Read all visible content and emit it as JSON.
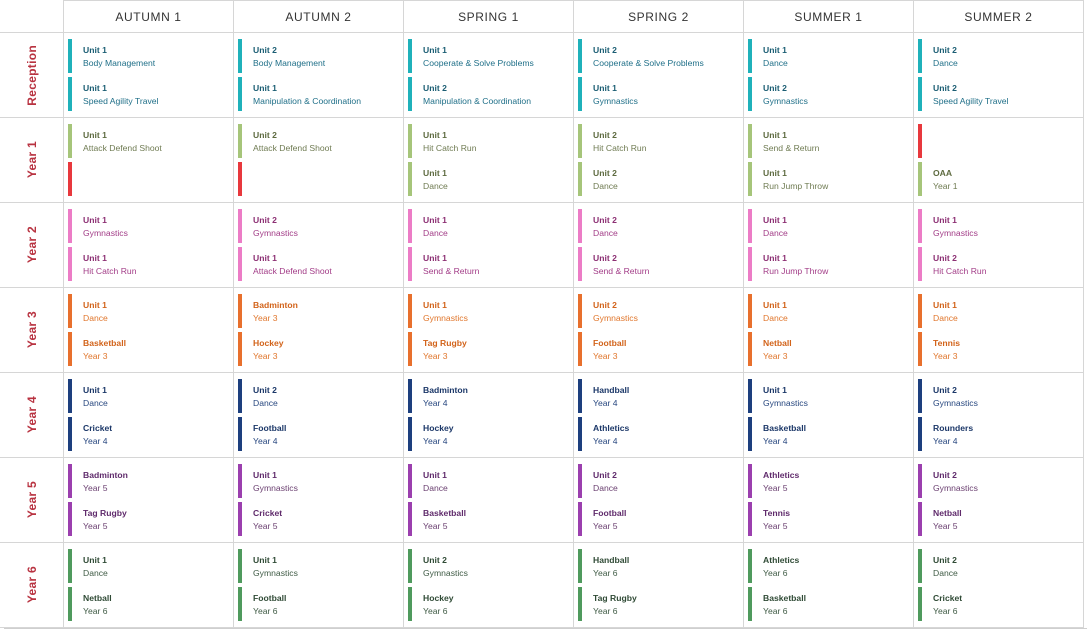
{
  "columns": [
    "AUTUMN 1",
    "AUTUMN 2",
    "SPRING 1",
    "SPRING 2",
    "SUMMER 1",
    "SUMMER 2"
  ],
  "rows": [
    {
      "label": "Reception",
      "bar_color": "#1fb1ba",
      "text_color": "#1f6f88",
      "title_color": "#1a5d73",
      "cells": [
        [
          {
            "title": "Unit 1",
            "sub": "Body Management"
          },
          {
            "title": "Unit 1",
            "sub": "Speed Agility Travel"
          }
        ],
        [
          {
            "title": "Unit 2",
            "sub": "Body Management"
          },
          {
            "title": "Unit 1",
            "sub": "Manipulation & Coordination"
          }
        ],
        [
          {
            "title": "Unit 1",
            "sub": "Cooperate & Solve Problems"
          },
          {
            "title": "Unit 2",
            "sub": "Manipulation & Coordination"
          }
        ],
        [
          {
            "title": "Unit 2",
            "sub": "Cooperate & Solve Problems"
          },
          {
            "title": "Unit 1",
            "sub": "Gymnastics"
          }
        ],
        [
          {
            "title": "Unit 1",
            "sub": "Dance"
          },
          {
            "title": "Unit 2",
            "sub": "Gymnastics"
          }
        ],
        [
          {
            "title": "Unit 2",
            "sub": "Dance"
          },
          {
            "title": "Unit 2",
            "sub": "Speed Agility Travel"
          }
        ]
      ]
    },
    {
      "label": "Year 1",
      "bar_color": "#a6c57a",
      "text_color": "#6f7b52",
      "title_color": "#5d6a3f",
      "cells": [
        [
          {
            "title": "Unit 1",
            "sub": "Attack Defend Shoot"
          },
          {
            "title": "",
            "sub": "",
            "bar": "#e8383d"
          }
        ],
        [
          {
            "title": "Unit 2",
            "sub": "Attack Defend Shoot"
          },
          {
            "title": "",
            "sub": "",
            "bar": "#e8383d"
          }
        ],
        [
          {
            "title": "Unit 1",
            "sub": "Hit Catch Run"
          },
          {
            "title": "Unit 1",
            "sub": "Dance"
          }
        ],
        [
          {
            "title": "Unit 2",
            "sub": "Hit Catch Run"
          },
          {
            "title": "Unit 2",
            "sub": "Dance"
          }
        ],
        [
          {
            "title": "Unit 1",
            "sub": "Send & Return"
          },
          {
            "title": "Unit 1",
            "sub": "Run Jump Throw"
          }
        ],
        [
          {
            "title": "",
            "sub": "",
            "bar": "#e8383d"
          },
          {
            "title": "OAA",
            "sub": "Year 1"
          }
        ]
      ]
    },
    {
      "label": "Year 2",
      "bar_color": "#ec7cc6",
      "text_color": "#a23c87",
      "title_color": "#8c2f73",
      "cells": [
        [
          {
            "title": "Unit 1",
            "sub": "Gymnastics"
          },
          {
            "title": "Unit 1",
            "sub": "Hit Catch Run"
          }
        ],
        [
          {
            "title": "Unit 2",
            "sub": "Gymnastics"
          },
          {
            "title": "Unit 1",
            "sub": "Attack Defend Shoot"
          }
        ],
        [
          {
            "title": "Unit 1",
            "sub": "Dance"
          },
          {
            "title": "Unit 1",
            "sub": "Send & Return"
          }
        ],
        [
          {
            "title": "Unit 2",
            "sub": "Dance"
          },
          {
            "title": "Unit 2",
            "sub": "Send & Return"
          }
        ],
        [
          {
            "title": "Unit 1",
            "sub": "Dance"
          },
          {
            "title": "Unit 1",
            "sub": "Run Jump Throw"
          }
        ],
        [
          {
            "title": "Unit 1",
            "sub": "Gymnastics"
          },
          {
            "title": "Unit 2",
            "sub": "Hit Catch Run"
          }
        ]
      ]
    },
    {
      "label": "Year 3",
      "bar_color": "#e8702d",
      "text_color": "#e0762c",
      "title_color": "#d2631a",
      "cells": [
        [
          {
            "title": "Unit 1",
            "sub": "Dance"
          },
          {
            "title": "Basketball",
            "sub": "Year 3"
          }
        ],
        [
          {
            "title": "Badminton",
            "sub": "Year 3"
          },
          {
            "title": "Hockey",
            "sub": "Year 3"
          }
        ],
        [
          {
            "title": "Unit 1",
            "sub": "Gymnastics"
          },
          {
            "title": "Tag Rugby",
            "sub": "Year 3"
          }
        ],
        [
          {
            "title": "Unit 2",
            "sub": "Gymnastics"
          },
          {
            "title": "Football",
            "sub": "Year 3"
          }
        ],
        [
          {
            "title": "Unit 1",
            "sub": "Dance"
          },
          {
            "title": "Netball",
            "sub": "Year 3"
          }
        ],
        [
          {
            "title": "Unit 1",
            "sub": "Dance"
          },
          {
            "title": "Tennis",
            "sub": "Year 3"
          }
        ]
      ]
    },
    {
      "label": "Year 4",
      "bar_color": "#1d3f7e",
      "text_color": "#27477f",
      "title_color": "#1b3768",
      "cells": [
        [
          {
            "title": "Unit 1",
            "sub": "Dance"
          },
          {
            "title": "Cricket",
            "sub": "Year 4"
          }
        ],
        [
          {
            "title": "Unit 2",
            "sub": "Dance"
          },
          {
            "title": "Football",
            "sub": "Year 4"
          }
        ],
        [
          {
            "title": "Badminton",
            "sub": "Year 4"
          },
          {
            "title": "Hockey",
            "sub": "Year 4"
          }
        ],
        [
          {
            "title": "Handball",
            "sub": "Year 4"
          },
          {
            "title": "Athletics",
            "sub": "Year 4"
          }
        ],
        [
          {
            "title": "Unit 1",
            "sub": "Gymnastics"
          },
          {
            "title": "Basketball",
            "sub": "Year 4"
          }
        ],
        [
          {
            "title": "Unit 2",
            "sub": "Gymnastics"
          },
          {
            "title": "Rounders",
            "sub": "Year 4"
          }
        ]
      ]
    },
    {
      "label": "Year 5",
      "bar_color": "#9b3fae",
      "text_color": "#6a3f70",
      "title_color": "#5f2a6b",
      "cells": [
        [
          {
            "title": "Badminton",
            "sub": "Year 5"
          },
          {
            "title": "Tag Rugby",
            "sub": "Year 5"
          }
        ],
        [
          {
            "title": "Unit 1",
            "sub": "Gymnastics"
          },
          {
            "title": "Cricket",
            "sub": "Year 5"
          }
        ],
        [
          {
            "title": "Unit 1",
            "sub": "Dance"
          },
          {
            "title": "Basketball",
            "sub": "Year 5"
          }
        ],
        [
          {
            "title": "Unit 2",
            "sub": "Dance"
          },
          {
            "title": "Football",
            "sub": "Year 5"
          }
        ],
        [
          {
            "title": "Athletics",
            "sub": "Year 5"
          },
          {
            "title": "Tennis",
            "sub": "Year 5"
          }
        ],
        [
          {
            "title": "Unit 2",
            "sub": "Gymnastics"
          },
          {
            "title": "Netball",
            "sub": "Year 5"
          }
        ]
      ]
    },
    {
      "label": "Year 6",
      "bar_color": "#4f9a5d",
      "text_color": "#3f5b45",
      "title_color": "#2f4a35",
      "cells": [
        [
          {
            "title": "Unit 1",
            "sub": "Dance"
          },
          {
            "title": "Netball",
            "sub": "Year 6"
          }
        ],
        [
          {
            "title": "Unit 1",
            "sub": "Gymnastics"
          },
          {
            "title": "Football",
            "sub": "Year 6"
          }
        ],
        [
          {
            "title": "Unit 2",
            "sub": "Gymnastics"
          },
          {
            "title": "Hockey",
            "sub": "Year 6"
          }
        ],
        [
          {
            "title": "Handball",
            "sub": "Year 6"
          },
          {
            "title": "Tag Rugby",
            "sub": "Year 6"
          }
        ],
        [
          {
            "title": "Athletics",
            "sub": "Year 6"
          },
          {
            "title": "Basketball",
            "sub": "Year 6"
          }
        ],
        [
          {
            "title": "Unit 2",
            "sub": "Dance"
          },
          {
            "title": "Cricket",
            "sub": "Year 6"
          }
        ]
      ]
    }
  ]
}
